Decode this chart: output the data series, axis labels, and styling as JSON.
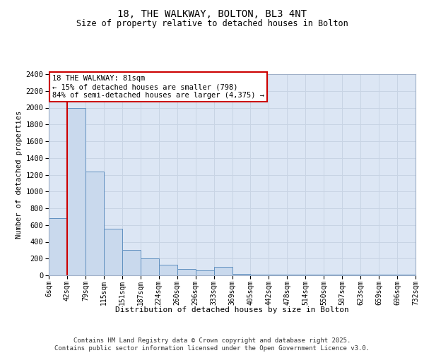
{
  "title_line1": "18, THE WALKWAY, BOLTON, BL3 4NT",
  "title_line2": "Size of property relative to detached houses in Bolton",
  "xlabel": "Distribution of detached houses by size in Bolton",
  "ylabel": "Number of detached properties",
  "bin_labels": [
    "6sqm",
    "42sqm",
    "79sqm",
    "115sqm",
    "151sqm",
    "187sqm",
    "224sqm",
    "260sqm",
    "296sqm",
    "333sqm",
    "369sqm",
    "405sqm",
    "442sqm",
    "478sqm",
    "514sqm",
    "550sqm",
    "587sqm",
    "623sqm",
    "659sqm",
    "696sqm",
    "732sqm"
  ],
  "bar_values": [
    680,
    2000,
    1240,
    560,
    300,
    205,
    130,
    80,
    60,
    100,
    20,
    5,
    5,
    5,
    5,
    5,
    5,
    5,
    5,
    5
  ],
  "bar_color": "#c9d9ed",
  "bar_edge_color": "#6090c0",
  "vline_x": 1,
  "vline_color": "#cc0000",
  "ylim_max": 2400,
  "ytick_step": 200,
  "annotation_text": "18 THE WALKWAY: 81sqm\n← 15% of detached houses are smaller (798)\n84% of semi-detached houses are larger (4,375) →",
  "annotation_box_facecolor": "#ffffff",
  "annotation_box_edgecolor": "#cc0000",
  "grid_color": "#c8d4e4",
  "plot_bg_color": "#dce6f4",
  "footer_line1": "Contains HM Land Registry data © Crown copyright and database right 2025.",
  "footer_line2": "Contains public sector information licensed under the Open Government Licence v3.0."
}
